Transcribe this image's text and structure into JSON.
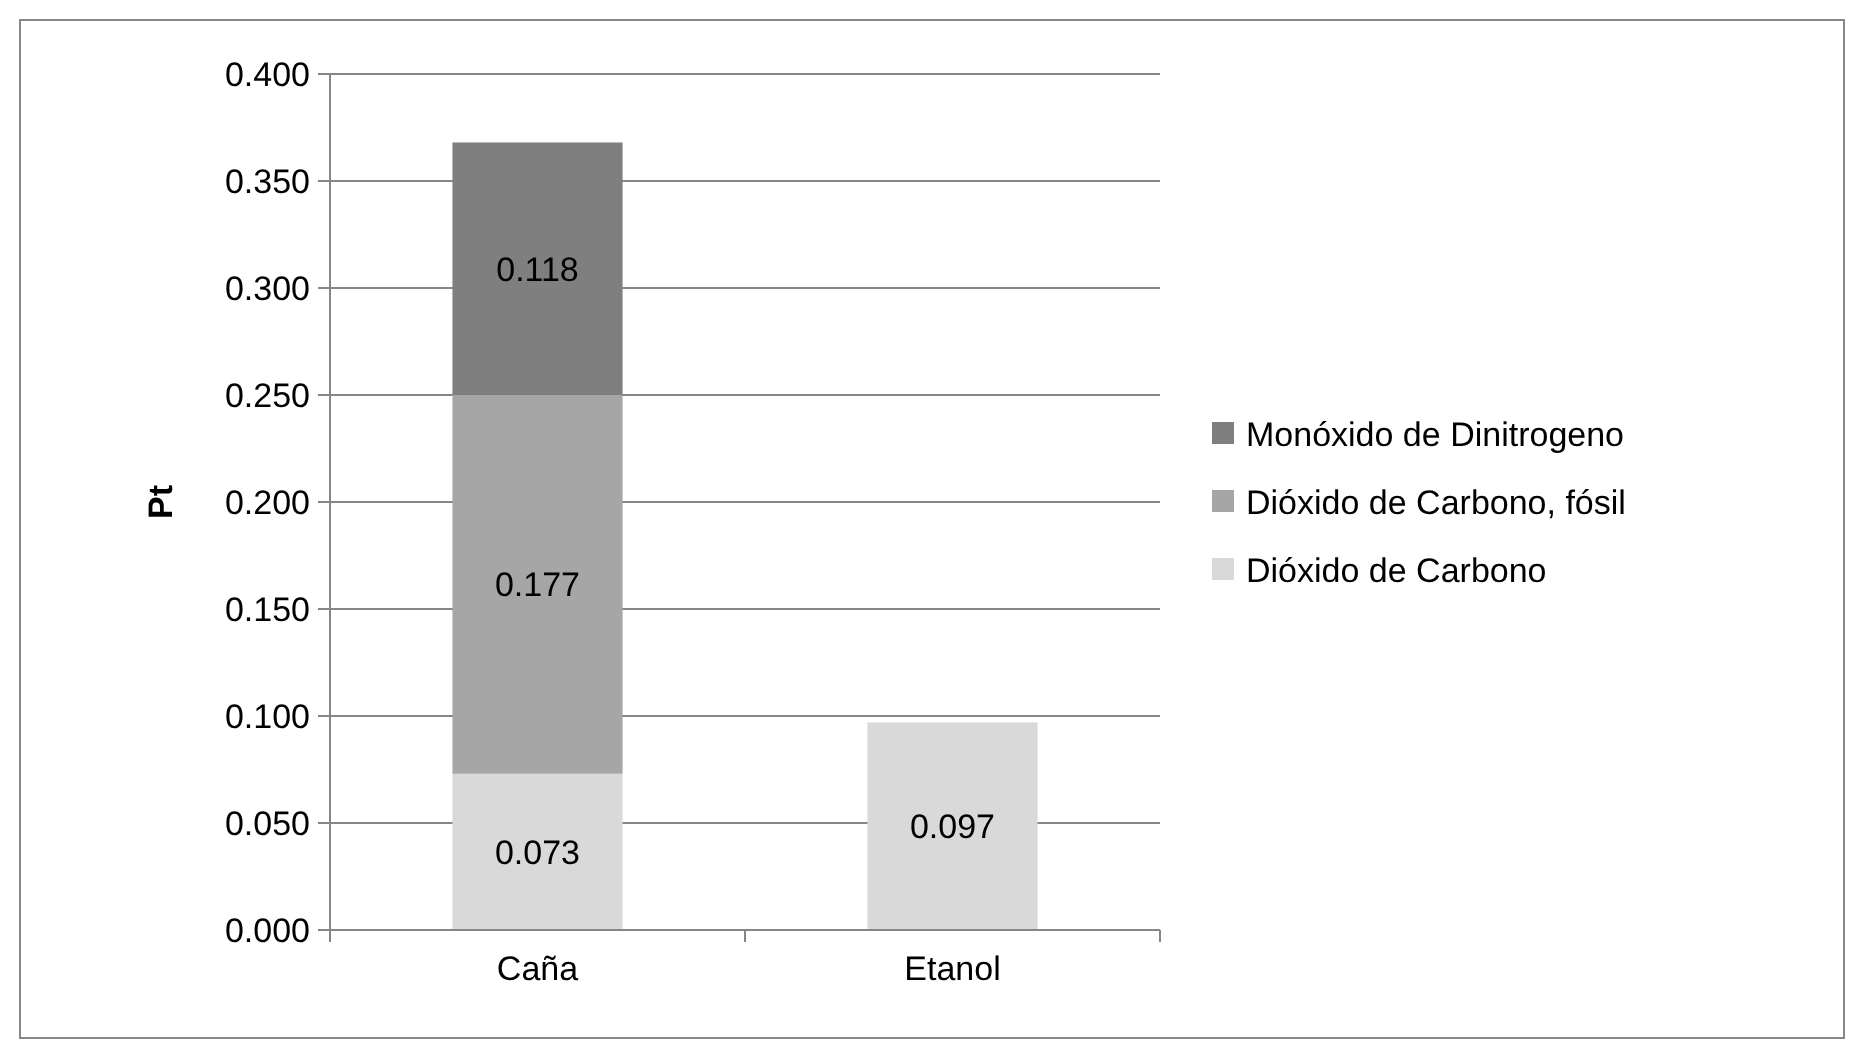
{
  "chart_data": {
    "type": "bar",
    "stacked": true,
    "ylabel": "Pt",
    "categories": [
      "Caña",
      "Etanol"
    ],
    "series": [
      {
        "name": "Dióxido de Carbono",
        "color": "#d9d9d9",
        "values": [
          0.073,
          0.097
        ]
      },
      {
        "name": "Dióxido de Carbono, fósil",
        "color": "#a6a6a6",
        "values": [
          0.177,
          null
        ]
      },
      {
        "name": "Monóxido de Dinitrogeno",
        "color": "#7f7f7f",
        "values": [
          0.118,
          null
        ]
      }
    ],
    "ylim": [
      0,
      0.4
    ],
    "yticks": [
      {
        "value": 0,
        "label": "0.000"
      },
      {
        "value": 0.05,
        "label": "0.050"
      },
      {
        "value": 0.1,
        "label": "0.100"
      },
      {
        "value": 0.15,
        "label": "0.150"
      },
      {
        "value": 0.2,
        "label": "0.200"
      },
      {
        "value": 0.25,
        "label": "0.250"
      },
      {
        "value": 0.3,
        "label": "0.300"
      },
      {
        "value": 0.35,
        "label": "0.350"
      },
      {
        "value": 0.4,
        "label": "0.400"
      }
    ],
    "grid": "y",
    "legend": "right",
    "data_labels": true
  }
}
